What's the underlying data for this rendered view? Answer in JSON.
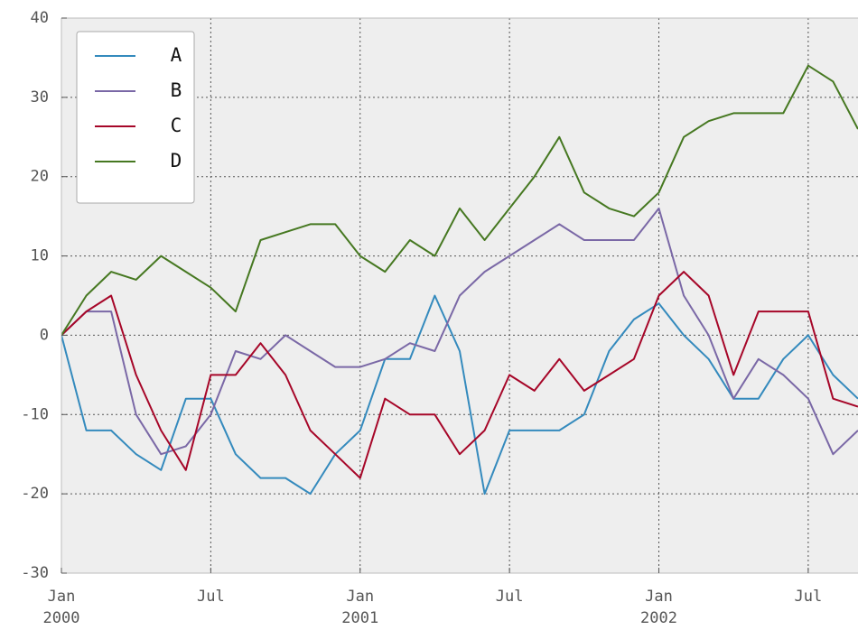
{
  "chart_data": {
    "type": "line",
    "x": [
      "2000-01",
      "2000-02",
      "2000-03",
      "2000-04",
      "2000-05",
      "2000-06",
      "2000-07",
      "2000-08",
      "2000-09",
      "2000-10",
      "2000-11",
      "2000-12",
      "2001-01",
      "2001-02",
      "2001-03",
      "2001-04",
      "2001-05",
      "2001-06",
      "2001-07",
      "2001-08",
      "2001-09",
      "2001-10",
      "2001-11",
      "2001-12",
      "2002-01",
      "2002-02",
      "2002-03",
      "2002-04",
      "2002-05",
      "2002-06",
      "2002-07",
      "2002-08",
      "2002-09"
    ],
    "series": [
      {
        "name": "A",
        "color": "#348abd",
        "values": [
          0,
          -12,
          -12,
          -15,
          -17,
          -8,
          -8,
          -15,
          -18,
          -18,
          -20,
          -15,
          -12,
          -3,
          -3,
          5,
          -2,
          -20,
          -12,
          -12,
          -12,
          -10,
          -2,
          2,
          4,
          0,
          -3,
          -8,
          -8,
          -3,
          0,
          -5,
          -8
        ]
      },
      {
        "name": "B",
        "color": "#7a68a6",
        "values": [
          0,
          3,
          3,
          -10,
          -15,
          -14,
          -10,
          -2,
          -3,
          0,
          -2,
          -4,
          -4,
          -3,
          -1,
          -2,
          5,
          8,
          10,
          12,
          14,
          12,
          12,
          12,
          16,
          5,
          0,
          -8,
          -3,
          -5,
          -8,
          -15,
          -12
        ]
      },
      {
        "name": "C",
        "color": "#a60628",
        "values": [
          0,
          3,
          5,
          -5,
          -12,
          -17,
          -5,
          -5,
          -1,
          -5,
          -12,
          -15,
          -18,
          -8,
          -10,
          -10,
          -15,
          -12,
          -5,
          -7,
          -3,
          -7,
          -5,
          -3,
          5,
          8,
          5,
          -5,
          3,
          3,
          3,
          -8,
          -9
        ]
      },
      {
        "name": "D",
        "color": "#467821",
        "values": [
          0,
          5,
          8,
          7,
          10,
          8,
          6,
          3,
          12,
          13,
          14,
          14,
          10,
          8,
          12,
          10,
          16,
          12,
          16,
          20,
          25,
          18,
          16,
          15,
          18,
          25,
          27,
          28,
          28,
          28,
          34,
          32,
          26
        ]
      }
    ],
    "xlim": [
      "2000-01",
      "2002-09"
    ],
    "xticks": [
      {
        "value": "2000-01",
        "label": [
          "Jan",
          "2000"
        ]
      },
      {
        "value": "2000-07",
        "label": [
          "Jul"
        ]
      },
      {
        "value": "2001-01",
        "label": [
          "Jan",
          "2001"
        ]
      },
      {
        "value": "2001-07",
        "label": [
          "Jul"
        ]
      },
      {
        "value": "2002-01",
        "label": [
          "Jan",
          "2002"
        ]
      },
      {
        "value": "2002-07",
        "label": [
          "Jul"
        ]
      }
    ],
    "ylim": [
      -30,
      40
    ],
    "yticks": [
      -30,
      -20,
      -10,
      0,
      10,
      20,
      30,
      40
    ],
    "grid": true,
    "legend": "upper left"
  }
}
